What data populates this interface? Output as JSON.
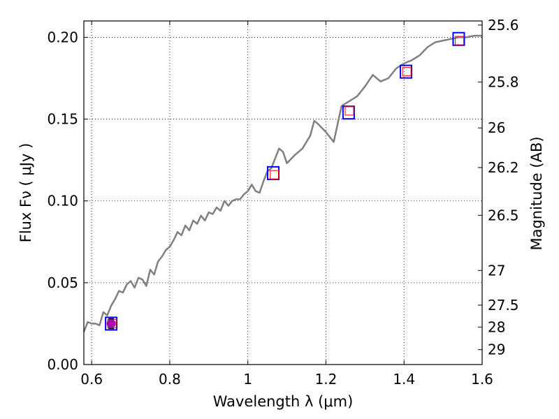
{
  "chart_data": {
    "type": "line",
    "xlabel": "Wavelength  λ (μm)",
    "ylabel": "Flux  Fν  ( μJy )",
    "ylabel_right": "Magnitude (AB)",
    "xlim": [
      0.58,
      1.6
    ],
    "ylim": [
      0.0,
      0.21
    ],
    "grid": true,
    "x_ticks": [
      {
        "value": 0.6,
        "label": "0.6"
      },
      {
        "value": 0.8,
        "label": "0.8"
      },
      {
        "value": 1.0,
        "label": "1"
      },
      {
        "value": 1.2,
        "label": "1.2"
      },
      {
        "value": 1.4,
        "label": "1.4"
      },
      {
        "value": 1.6,
        "label": "1.6"
      }
    ],
    "y_ticks": [
      {
        "value": 0.0,
        "label": "0.00"
      },
      {
        "value": 0.05,
        "label": "0.05"
      },
      {
        "value": 0.1,
        "label": "0.10"
      },
      {
        "value": 0.15,
        "label": "0.15"
      },
      {
        "value": 0.2,
        "label": "0.20"
      }
    ],
    "right_ticks": [
      {
        "flux": 0.2075,
        "label": "25.6"
      },
      {
        "flux": 0.1727,
        "label": "25.8"
      },
      {
        "flux": 0.1446,
        "label": "26"
      },
      {
        "flux": 0.1204,
        "label": "26.2"
      },
      {
        "flux": 0.0912,
        "label": "26.5"
      },
      {
        "flux": 0.0575,
        "label": "27"
      },
      {
        "flux": 0.0363,
        "label": "27.5"
      },
      {
        "flux": 0.0229,
        "label": "28"
      },
      {
        "flux": 0.0091,
        "label": "29"
      }
    ],
    "series": [
      {
        "kind": "model-spectrum",
        "color": "#808080",
        "x": [
          0.58,
          0.59,
          0.6,
          0.61,
          0.62,
          0.63,
          0.64,
          0.65,
          0.66,
          0.67,
          0.68,
          0.69,
          0.7,
          0.71,
          0.72,
          0.73,
          0.74,
          0.75,
          0.76,
          0.77,
          0.78,
          0.79,
          0.8,
          0.81,
          0.82,
          0.83,
          0.84,
          0.85,
          0.86,
          0.87,
          0.88,
          0.89,
          0.9,
          0.91,
          0.92,
          0.93,
          0.94,
          0.95,
          0.96,
          0.97,
          0.98,
          0.99,
          1.0,
          1.01,
          1.02,
          1.03,
          1.04,
          1.05,
          1.06,
          1.07,
          1.08,
          1.09,
          1.1,
          1.12,
          1.14,
          1.16,
          1.17,
          1.18,
          1.2,
          1.22,
          1.24,
          1.26,
          1.28,
          1.3,
          1.32,
          1.34,
          1.36,
          1.38,
          1.4,
          1.42,
          1.44,
          1.46,
          1.48,
          1.5,
          1.52,
          1.54,
          1.56,
          1.58,
          1.6
        ],
        "y": [
          0.02,
          0.026,
          0.025,
          0.025,
          0.024,
          0.032,
          0.03,
          0.036,
          0.04,
          0.045,
          0.044,
          0.049,
          0.051,
          0.047,
          0.053,
          0.052,
          0.048,
          0.058,
          0.055,
          0.063,
          0.066,
          0.07,
          0.072,
          0.076,
          0.081,
          0.079,
          0.085,
          0.082,
          0.088,
          0.086,
          0.091,
          0.088,
          0.093,
          0.092,
          0.096,
          0.094,
          0.1,
          0.097,
          0.1,
          0.101,
          0.101,
          0.104,
          0.106,
          0.11,
          0.106,
          0.105,
          0.112,
          0.118,
          0.12,
          0.126,
          0.132,
          0.13,
          0.123,
          0.128,
          0.132,
          0.14,
          0.149,
          0.147,
          0.142,
          0.136,
          0.158,
          0.161,
          0.164,
          0.17,
          0.177,
          0.173,
          0.175,
          0.181,
          0.184,
          0.186,
          0.189,
          0.194,
          0.197,
          0.198,
          0.199,
          0.2,
          0.2,
          0.201,
          0.201
        ]
      },
      {
        "kind": "photometry-blue-squares",
        "color": "#0000ff",
        "x": [
          0.65,
          1.065,
          1.258,
          1.405,
          1.54
        ],
        "y": [
          0.025,
          0.117,
          0.154,
          0.179,
          0.199
        ]
      },
      {
        "kind": "photometry-red-squares",
        "color": "#ff0000",
        "x": [
          0.652,
          1.068,
          1.26,
          1.407,
          1.542
        ],
        "y": [
          0.025,
          0.116,
          0.155,
          0.179,
          0.198
        ]
      },
      {
        "kind": "observed-point",
        "color": "#aa00aa",
        "x": [
          0.65
        ],
        "y": [
          0.025
        ],
        "yerr": [
          0.003
        ]
      }
    ]
  }
}
